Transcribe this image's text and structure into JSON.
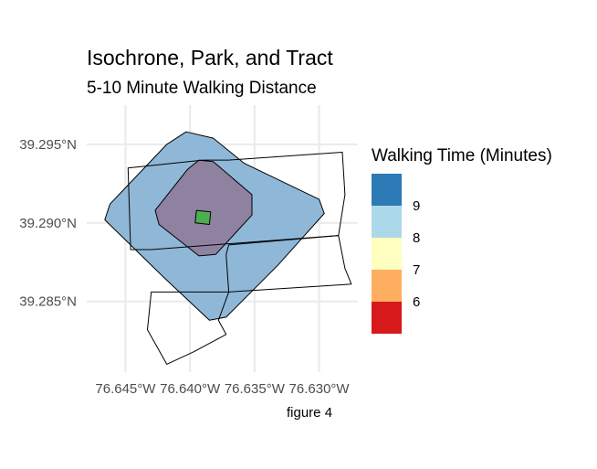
{
  "title": "Isochrone, Park, and Tract",
  "subtitle": "5-10 Minute Walking Distance",
  "caption": "figure 4",
  "legend": {
    "title": "Walking Time (Minutes)",
    "items": [
      {
        "label": "9",
        "color": "#2C7BB6"
      },
      {
        "label": "8",
        "color": "#ABD9E9"
      },
      {
        "label": "7",
        "color": "#FFFFBF"
      },
      {
        "label": "6",
        "color": "#FDAE61"
      },
      {
        "label": "",
        "color": "#D7191C"
      }
    ]
  },
  "chart_data": {
    "type": "map",
    "grid": true,
    "x_ticks": [
      {
        "value": -76.645,
        "label": "76.645°W"
      },
      {
        "value": -76.64,
        "label": "76.640°W"
      },
      {
        "value": -76.635,
        "label": "76.635°W"
      },
      {
        "value": -76.63,
        "label": "76.630°W"
      }
    ],
    "y_ticks": [
      {
        "value": 39.295,
        "label": "39.295°N"
      },
      {
        "value": 39.29,
        "label": "39.290°N"
      },
      {
        "value": 39.285,
        "label": "39.285°N"
      }
    ],
    "xlim": [
      -76.648,
      -76.627
    ],
    "ylim": [
      39.2805,
      39.2975
    ],
    "layers": [
      {
        "name": "isochrone-10min",
        "fill": "#8FB8D8",
        "stroke": "#000000",
        "coords": [
          [
            -76.6403,
            39.2958
          ],
          [
            -76.6382,
            39.2954
          ],
          [
            -76.6358,
            39.2938
          ],
          [
            -76.63,
            39.2915
          ],
          [
            -76.6296,
            39.2906
          ],
          [
            -76.6332,
            39.2873
          ],
          [
            -76.6372,
            39.284
          ],
          [
            -76.6385,
            39.2838
          ],
          [
            -76.642,
            39.2865
          ],
          [
            -76.6466,
            39.2902
          ],
          [
            -76.6462,
            39.2912
          ],
          [
            -76.6418,
            39.295
          ]
        ]
      },
      {
        "name": "isochrone-5min",
        "fill": "#8E82A0",
        "stroke": "#000000",
        "coords": [
          [
            -76.6393,
            39.294
          ],
          [
            -76.6382,
            39.2939
          ],
          [
            -76.6352,
            39.2918
          ],
          [
            -76.6352,
            39.2905
          ],
          [
            -76.638,
            39.288
          ],
          [
            -76.6393,
            39.2879
          ],
          [
            -76.6424,
            39.2899
          ],
          [
            -76.6427,
            39.2908
          ],
          [
            -76.6402,
            39.2934
          ]
        ]
      },
      {
        "name": "park",
        "fill": "#4CAF50",
        "stroke": "#000000",
        "coords": [
          [
            -76.6395,
            39.2908
          ],
          [
            -76.6384,
            39.2907
          ],
          [
            -76.6385,
            39.2899
          ],
          [
            -76.6396,
            39.29
          ]
        ]
      },
      {
        "name": "tract-north",
        "fill": "none",
        "stroke": "#000000",
        "coords": [
          [
            -76.6448,
            39.2935
          ],
          [
            -76.639,
            39.294
          ],
          [
            -76.637,
            39.294
          ],
          [
            -76.6282,
            39.2945
          ],
          [
            -76.628,
            39.2918
          ],
          [
            -76.6285,
            39.2892
          ],
          [
            -76.643,
            39.2883
          ],
          [
            -76.6446,
            39.2883
          ]
        ]
      },
      {
        "name": "tract-east",
        "fill": "none",
        "stroke": "#000000",
        "coords": [
          [
            -76.637,
            39.2886
          ],
          [
            -76.6285,
            39.2892
          ],
          [
            -76.628,
            39.2871
          ],
          [
            -76.6275,
            39.2861
          ],
          [
            -76.637,
            39.2856
          ],
          [
            -76.6372,
            39.288
          ]
        ]
      },
      {
        "name": "tract-south",
        "fill": "none",
        "stroke": "#000000",
        "coords": [
          [
            -76.6378,
            39.2838
          ],
          [
            -76.637,
            39.2856
          ],
          [
            -76.643,
            39.2856
          ],
          [
            -76.6433,
            39.2832
          ],
          [
            -76.6418,
            39.281
          ],
          [
            -76.6397,
            39.2818
          ],
          [
            -76.6372,
            39.2829
          ]
        ]
      }
    ]
  }
}
